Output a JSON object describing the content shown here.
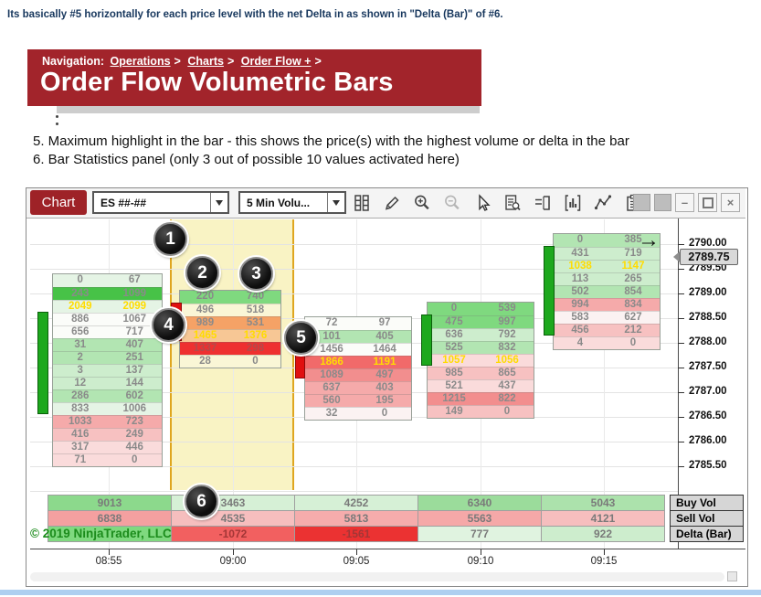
{
  "intro": "Its basically #5 horizontally for each price level with the net Delta in as shown in \"Delta (Bar)\" of #6.",
  "header": {
    "nav_label": "Navigation:",
    "links": [
      "Operations",
      "Charts",
      "Order Flow +"
    ],
    "sep": ">",
    "title": "Order Flow Volumetric Bars"
  },
  "notes": {
    "note5": "5. Maximum highlight in the bar - this shows the price(s) with the highest volume or delta in the bar",
    "note6": "6. Bar Statistics panel (only 3 out of possible 10 values activated here)"
  },
  "toolbar": {
    "chart_tab": "Chart",
    "instrument": "ES ##-##",
    "interval": "5 Min Volu...",
    "icons": [
      "grid-columns-icon",
      "pencil-icon",
      "zoom-in-icon",
      "zoom-out-icon",
      "cursor-icon",
      "report-search-icon",
      "data-box-icon",
      "indicators-icon",
      "zigzag-icon",
      "strategy-clipboard-icon",
      "properties-list-icon"
    ],
    "window_buttons": [
      "panel-button",
      "panel-button",
      "minimize",
      "restore",
      "close"
    ]
  },
  "badges": [
    "1",
    "2",
    "3",
    "4",
    "5",
    "6"
  ],
  "price_axis": {
    "labels": [
      "2790.00",
      "2789.50",
      "2789.00",
      "2788.50",
      "2788.00",
      "2787.50",
      "2787.00",
      "2786.50",
      "2786.00",
      "2785.50"
    ],
    "pointer": "2789.75"
  },
  "time_axis": [
    "08:55",
    "09:00",
    "09:05",
    "09:10",
    "09:15"
  ],
  "stats": {
    "row_labels": [
      "Buy Vol",
      "Sell Vol",
      "Delta (Bar)"
    ],
    "buy": [
      [
        "9013",
        "#8CD98C"
      ],
      [
        "3463",
        "#D6F0D6"
      ],
      [
        "4252",
        "#D6F0D6"
      ],
      [
        "6340",
        "#9BDC9B"
      ],
      [
        "5043",
        "#ACE2AC"
      ]
    ],
    "sell": [
      [
        "6838",
        "#F4A0A0"
      ],
      [
        "4535",
        "#F6BEBE"
      ],
      [
        "5813",
        "#F5ACAC"
      ],
      [
        "5563",
        "#F5A8A8"
      ],
      [
        "4121",
        "#F6BEBE"
      ]
    ],
    "delta": [
      [
        "",
        "#7FD97F"
      ],
      [
        "-1072",
        "#F26060",
        "dark"
      ],
      [
        "-1561",
        "#EB3232",
        "dark"
      ],
      [
        "777",
        "#E0F3E0"
      ],
      [
        "922",
        "#CDEDCD"
      ]
    ],
    "copyright": "© 2019 NinjaTrader, LLC"
  },
  "chart_data": {
    "type": "table",
    "description": "Order Flow Volumetric Bars: bid volume x ask volume per 0.25 price level; yellow values mark the max-volume row; bottom panel shows Buy Vol, Sell Vol and Delta per bar",
    "price_increment": 0.25,
    "bars": [
      {
        "time": "08:55",
        "candle": "up",
        "top_price": "2789.25",
        "rows": [
          [
            "0",
            "67",
            "g4"
          ],
          [
            "243",
            "1099",
            "g0"
          ],
          [
            "2049",
            "2099",
            "g4",
            1
          ],
          [
            "886",
            "1067",
            "w"
          ],
          [
            "656",
            "717",
            "w"
          ],
          [
            "31",
            "407",
            "g2"
          ],
          [
            "2",
            "251",
            "g2"
          ],
          [
            "3",
            "137",
            "g3"
          ],
          [
            "12",
            "144",
            "g3"
          ],
          [
            "286",
            "602",
            "g2"
          ],
          [
            "833",
            "1006",
            "g4"
          ],
          [
            "1033",
            "723",
            "r2"
          ],
          [
            "416",
            "249",
            "r3"
          ],
          [
            "317",
            "446",
            "r4"
          ],
          [
            "71",
            "0",
            "r4"
          ]
        ]
      },
      {
        "time": "09:00",
        "candle": "down",
        "top_price": "2789.00",
        "rows": [
          [
            "220",
            "740",
            "g1"
          ],
          [
            "496",
            "518",
            "y"
          ],
          [
            "989",
            "531",
            "o"
          ],
          [
            "1465",
            "1376",
            "o2",
            1
          ],
          [
            "1337",
            "298",
            "r0"
          ],
          [
            "28",
            "0",
            "y"
          ]
        ]
      },
      {
        "time": "09:05",
        "candle": "down",
        "top_price": "2788.50",
        "rows": [
          [
            "72",
            "97",
            "w"
          ],
          [
            "101",
            "405",
            "g2"
          ],
          [
            "1456",
            "1464",
            "w"
          ],
          [
            "1866",
            "1191",
            "rm",
            1
          ],
          [
            "1089",
            "497",
            "r1"
          ],
          [
            "637",
            "403",
            "r2"
          ],
          [
            "560",
            "195",
            "r2"
          ],
          [
            "32",
            "0",
            "wp"
          ]
        ]
      },
      {
        "time": "09:10",
        "candle": "up",
        "top_price": "2788.75",
        "rows": [
          [
            "0",
            "539",
            "g1"
          ],
          [
            "475",
            "997",
            "g1"
          ],
          [
            "636",
            "792",
            "g3"
          ],
          [
            "525",
            "832",
            "g2"
          ],
          [
            "1057",
            "1056",
            "r4",
            1
          ],
          [
            "985",
            "865",
            "r3"
          ],
          [
            "521",
            "437",
            "r4"
          ],
          [
            "1215",
            "822",
            "r1"
          ],
          [
            "149",
            "0",
            "r3"
          ]
        ]
      },
      {
        "time": "09:15",
        "candle": "up",
        "top_price": "2790.00",
        "rows": [
          [
            "0",
            "385",
            "g2"
          ],
          [
            "431",
            "719",
            "g3"
          ],
          [
            "1038",
            "1147",
            "g3",
            1
          ],
          [
            "113",
            "265",
            "g3"
          ],
          [
            "502",
            "854",
            "g2"
          ],
          [
            "994",
            "834",
            "r2"
          ],
          [
            "583",
            "627",
            "wp"
          ],
          [
            "456",
            "212",
            "r3"
          ],
          [
            "4",
            "0",
            "r4"
          ]
        ]
      }
    ]
  }
}
